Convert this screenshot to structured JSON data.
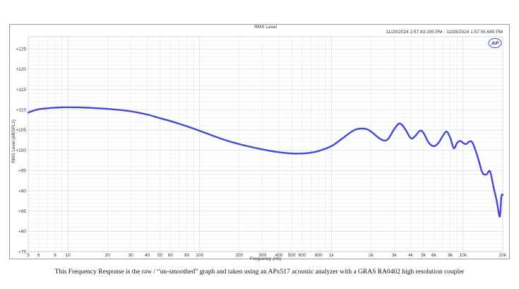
{
  "chart_data": {
    "type": "line",
    "title": "RMS Level",
    "subtitle": "11/20/2024 2:57:43.195 PM - 11/26/2024 1:57:55.645 PM",
    "xlabel": "Frequency (Hz)",
    "ylabel": "RMS Level (dBSPL1)",
    "xscale": "log",
    "xlim": [
      5,
      20000
    ],
    "ylim": [
      75,
      128
    ],
    "grid": true,
    "x_ticks": [
      {
        "v": 5,
        "label": "5"
      },
      {
        "v": 6,
        "label": "6"
      },
      {
        "v": 8,
        "label": "8"
      },
      {
        "v": 10,
        "label": "10"
      },
      {
        "v": 20,
        "label": "20"
      },
      {
        "v": 30,
        "label": "30"
      },
      {
        "v": 40,
        "label": "40"
      },
      {
        "v": 50,
        "label": "50"
      },
      {
        "v": 60,
        "label": "60"
      },
      {
        "v": 80,
        "label": "80"
      },
      {
        "v": 100,
        "label": "100"
      },
      {
        "v": 200,
        "label": "200"
      },
      {
        "v": 300,
        "label": "300"
      },
      {
        "v": 400,
        "label": "400"
      },
      {
        "v": 500,
        "label": "500"
      },
      {
        "v": 600,
        "label": "600"
      },
      {
        "v": 800,
        "label": "800"
      },
      {
        "v": 1000,
        "label": "1k"
      },
      {
        "v": 2000,
        "label": "2k"
      },
      {
        "v": 3000,
        "label": "3k"
      },
      {
        "v": 4000,
        "label": "4k"
      },
      {
        "v": 5000,
        "label": "5k"
      },
      {
        "v": 6000,
        "label": "6k"
      },
      {
        "v": 8000,
        "label": "8k"
      },
      {
        "v": 10000,
        "label": "10k"
      },
      {
        "v": 20000,
        "label": "20k"
      }
    ],
    "y_ticks": [
      {
        "v": 75,
        "label": "+75"
      },
      {
        "v": 80,
        "label": "+80"
      },
      {
        "v": 85,
        "label": "+85"
      },
      {
        "v": 90,
        "label": "+90"
      },
      {
        "v": 95,
        "label": "+95"
      },
      {
        "v": 100,
        "label": "+100"
      },
      {
        "v": 105,
        "label": "+105"
      },
      {
        "v": 110,
        "label": "+110"
      },
      {
        "v": 115,
        "label": "+115"
      },
      {
        "v": 120,
        "label": "+120"
      },
      {
        "v": 125,
        "label": "+125"
      }
    ],
    "series": [
      {
        "color": "#4646d8",
        "x": [
          5,
          6,
          8,
          10,
          14,
          20,
          30,
          40,
          50,
          60,
          80,
          100,
          150,
          200,
          300,
          400,
          500,
          600,
          700,
          800,
          1000,
          1200,
          1500,
          1800,
          2000,
          2300,
          2500,
          2700,
          3000,
          3300,
          3600,
          4000,
          4300,
          4700,
          5000,
          5500,
          6000,
          6500,
          7000,
          7500,
          8000,
          8500,
          9000,
          9500,
          10000,
          10500,
          11000,
          11500,
          12000,
          13000,
          14000,
          15000,
          16000,
          17000,
          18000,
          19000,
          19500,
          20000
        ],
        "y": [
          109.3,
          110.1,
          110.5,
          110.6,
          110.5,
          110.2,
          109.6,
          108.8,
          107.9,
          107.2,
          105.9,
          104.8,
          102.7,
          101.5,
          100.2,
          99.5,
          99.2,
          99.2,
          99.4,
          99.8,
          101.0,
          102.8,
          105.0,
          105.3,
          104.6,
          103.0,
          102.4,
          102.8,
          105.2,
          106.6,
          105.4,
          103.0,
          103.4,
          104.8,
          104.3,
          101.8,
          101.0,
          101.8,
          103.5,
          104.6,
          103.0,
          100.5,
          101.8,
          102.3,
          101.8,
          101.5,
          102.0,
          102.2,
          101.3,
          98.0,
          94.5,
          94.0,
          94.8,
          91.0,
          87.5,
          83.6,
          88.5,
          89.0
        ]
      }
    ]
  },
  "caption": "This Frequency Response is the raw / “un-smoothed” graph and taken using an APx517 acoustic analyzer with a GRAS RA0402 high resolution coupler",
  "logo_text": "AP"
}
